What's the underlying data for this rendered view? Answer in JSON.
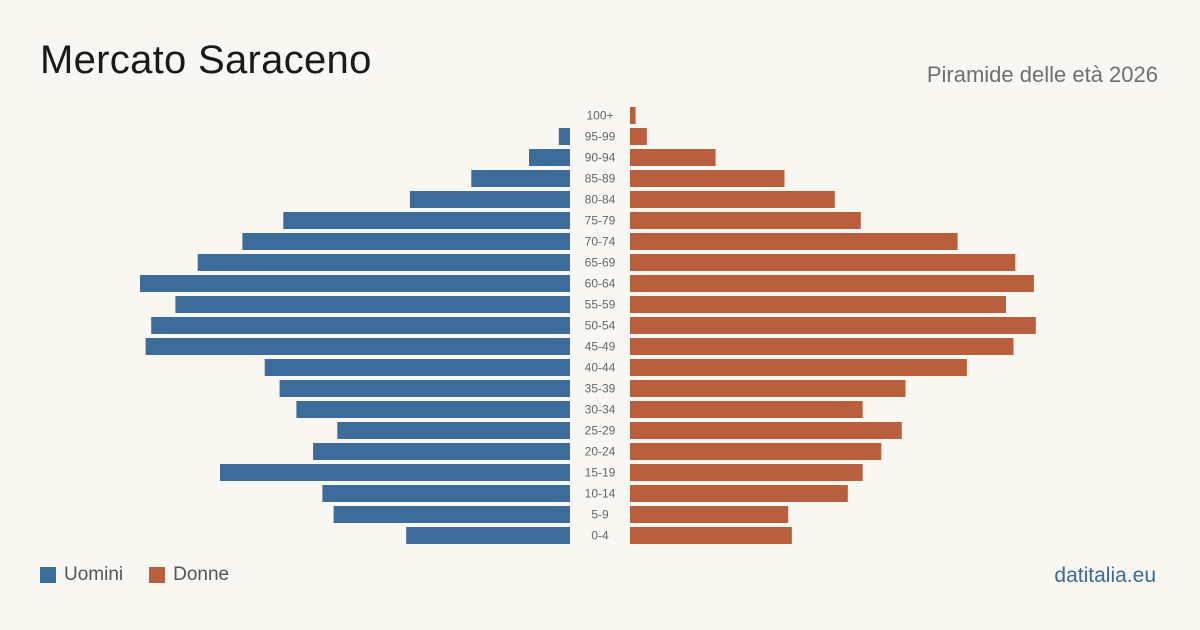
{
  "title": "Mercato Saraceno",
  "subtitle": "Piramide delle età 2026",
  "brand": "datitalia.eu",
  "legend": {
    "men_label": "Uomini",
    "women_label": "Donne"
  },
  "colors": {
    "men": "#3d6b9a",
    "women": "#b95f3e",
    "background": "#f9f7f2",
    "age_label": "#666666"
  },
  "chart_data": {
    "type": "bar",
    "orientation": "horizontal-pyramid",
    "categories": [
      "100+",
      "95-99",
      "90-94",
      "85-89",
      "80-84",
      "75-79",
      "70-74",
      "65-69",
      "60-64",
      "55-59",
      "50-54",
      "45-49",
      "40-44",
      "35-39",
      "30-34",
      "25-29",
      "20-24",
      "15-19",
      "10-14",
      "5-9",
      "0-4"
    ],
    "series": [
      {
        "name": "Uomini",
        "values": [
          0,
          6,
          22,
          53,
          86,
          154,
          176,
          200,
          231,
          212,
          225,
          228,
          164,
          156,
          147,
          125,
          138,
          188,
          133,
          127,
          88
        ]
      },
      {
        "name": "Donne",
        "values": [
          3,
          9,
          46,
          83,
          110,
          124,
          176,
          207,
          217,
          202,
          218,
          206,
          181,
          148,
          125,
          146,
          135,
          125,
          117,
          85,
          87
        ]
      }
    ],
    "xlim": [
      0,
      231
    ],
    "grid": false,
    "legend_position": "bottom-left"
  }
}
